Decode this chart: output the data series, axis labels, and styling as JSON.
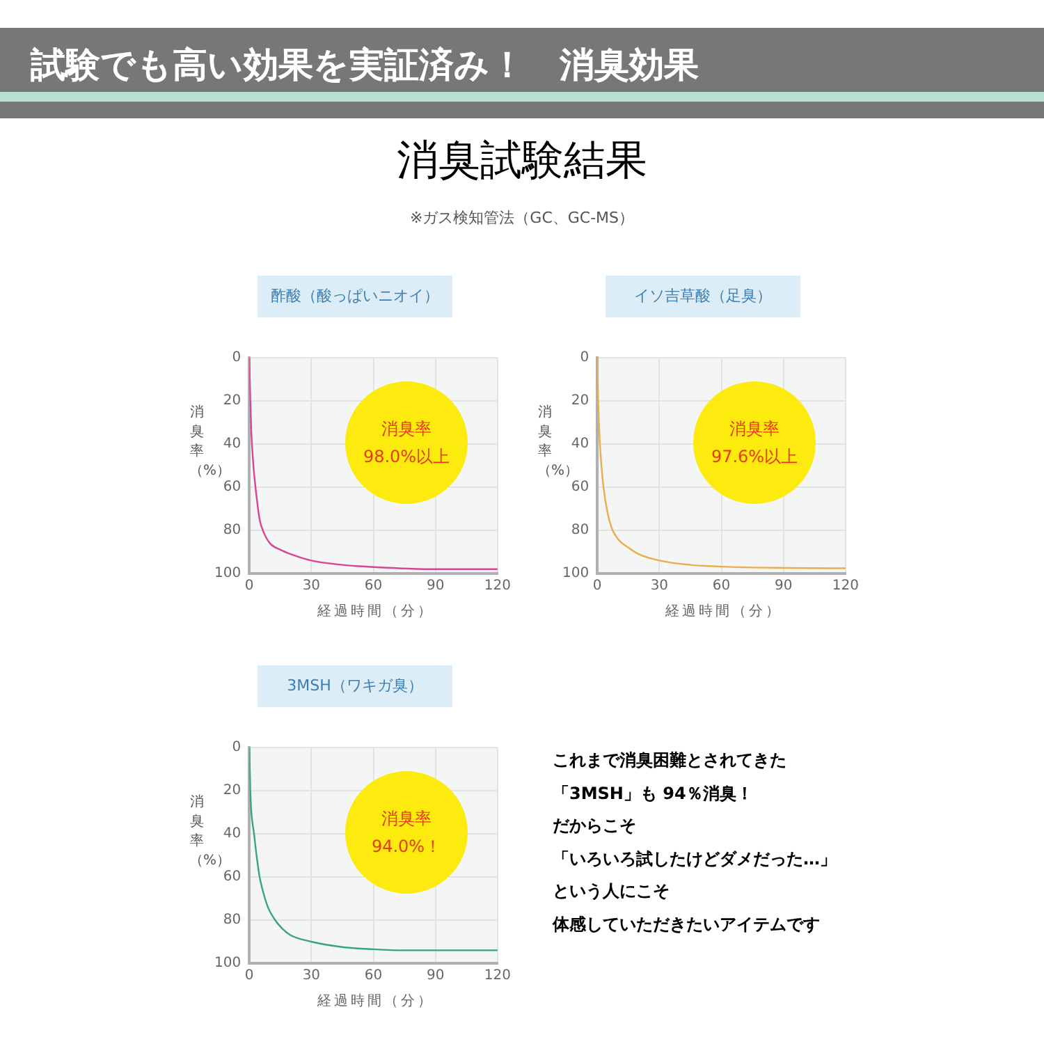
{
  "chart_data": [
    {
      "type": "other",
      "title": "試験でも高い効果を実証済み！　消臭効果",
      "subtitle": "消臭試験結果",
      "annotations": [
        "※ガス検知管法（GC、GC-MS）"
      ]
    },
    {
      "type": "line",
      "title": "酢酸（酸っぱいニオイ）",
      "xlabel": "経過時間（分）",
      "ylabel": "消臭率（%）",
      "annotations": [
        "消臭率",
        "98.0%以上"
      ],
      "xlim": [
        0,
        120
      ],
      "xticks": [
        0,
        30,
        60,
        90,
        120
      ],
      "ylim": [
        100,
        0
      ],
      "yticks": [
        0,
        20,
        40,
        60,
        80,
        100
      ],
      "grid": true,
      "legend": false,
      "series": [
        {
          "color": "#d9468f",
          "x": [
            0,
            0.5,
            1,
            2,
            3,
            5,
            7,
            10,
            15,
            20,
            30,
            45,
            60,
            90,
            120
          ],
          "values": [
            0,
            20,
            35,
            50,
            60,
            75,
            81,
            86,
            89,
            91,
            94,
            96,
            97,
            98,
            98
          ]
        }
      ]
    },
    {
      "type": "line",
      "title": "イソ吉草酸（足臭）",
      "xlabel": "経過時間（分）",
      "ylabel": "消臭率（%）",
      "annotations": [
        "消臭率",
        "97.6%以上"
      ],
      "xlim": [
        0,
        120
      ],
      "xticks": [
        0,
        30,
        60,
        90,
        120
      ],
      "ylim": [
        100,
        0
      ],
      "yticks": [
        0,
        20,
        40,
        60,
        80,
        100
      ],
      "grid": true,
      "legend": false,
      "series": [
        {
          "color": "#e9ac4e",
          "x": [
            0,
            0.5,
            1,
            2,
            3,
            5,
            7,
            10,
            15,
            20,
            30,
            45,
            60,
            90,
            120
          ],
          "values": [
            0,
            22,
            35,
            50,
            60,
            72,
            79,
            84,
            88,
            91,
            94,
            96,
            96.8,
            97.4,
            97.6
          ]
        }
      ]
    },
    {
      "type": "line",
      "title": "3MSH（ワキガ臭）",
      "xlabel": "経過時間（分）",
      "ylabel": "消臭率（%）",
      "annotations": [
        "消臭率",
        "94.0%！"
      ],
      "xlim": [
        0,
        120
      ],
      "xticks": [
        0,
        30,
        60,
        90,
        120
      ],
      "ylim": [
        100,
        0
      ],
      "yticks": [
        0,
        20,
        40,
        60,
        80,
        100
      ],
      "grid": true,
      "legend": false,
      "series": [
        {
          "color": "#3aa57a",
          "x": [
            0,
            0.5,
            1,
            2.3,
            3.5,
            5,
            7,
            9,
            12.5,
            16,
            20,
            30,
            45,
            60,
            75,
            90,
            120
          ],
          "values": [
            0,
            20,
            30,
            40,
            50,
            60,
            68,
            74,
            80,
            84,
            87,
            90,
            92.5,
            93.5,
            94,
            94,
            94
          ]
        }
      ]
    },
    {
      "type": "other",
      "annotations": [
        "これまで消臭困難とされてきた",
        "「3MSH」も 94％消臭！",
        "だからこそ",
        "「いろいろ試したけどダメだった…」",
        "という人にこそ",
        "体感していただきたいアイテムです"
      ]
    }
  ]
}
